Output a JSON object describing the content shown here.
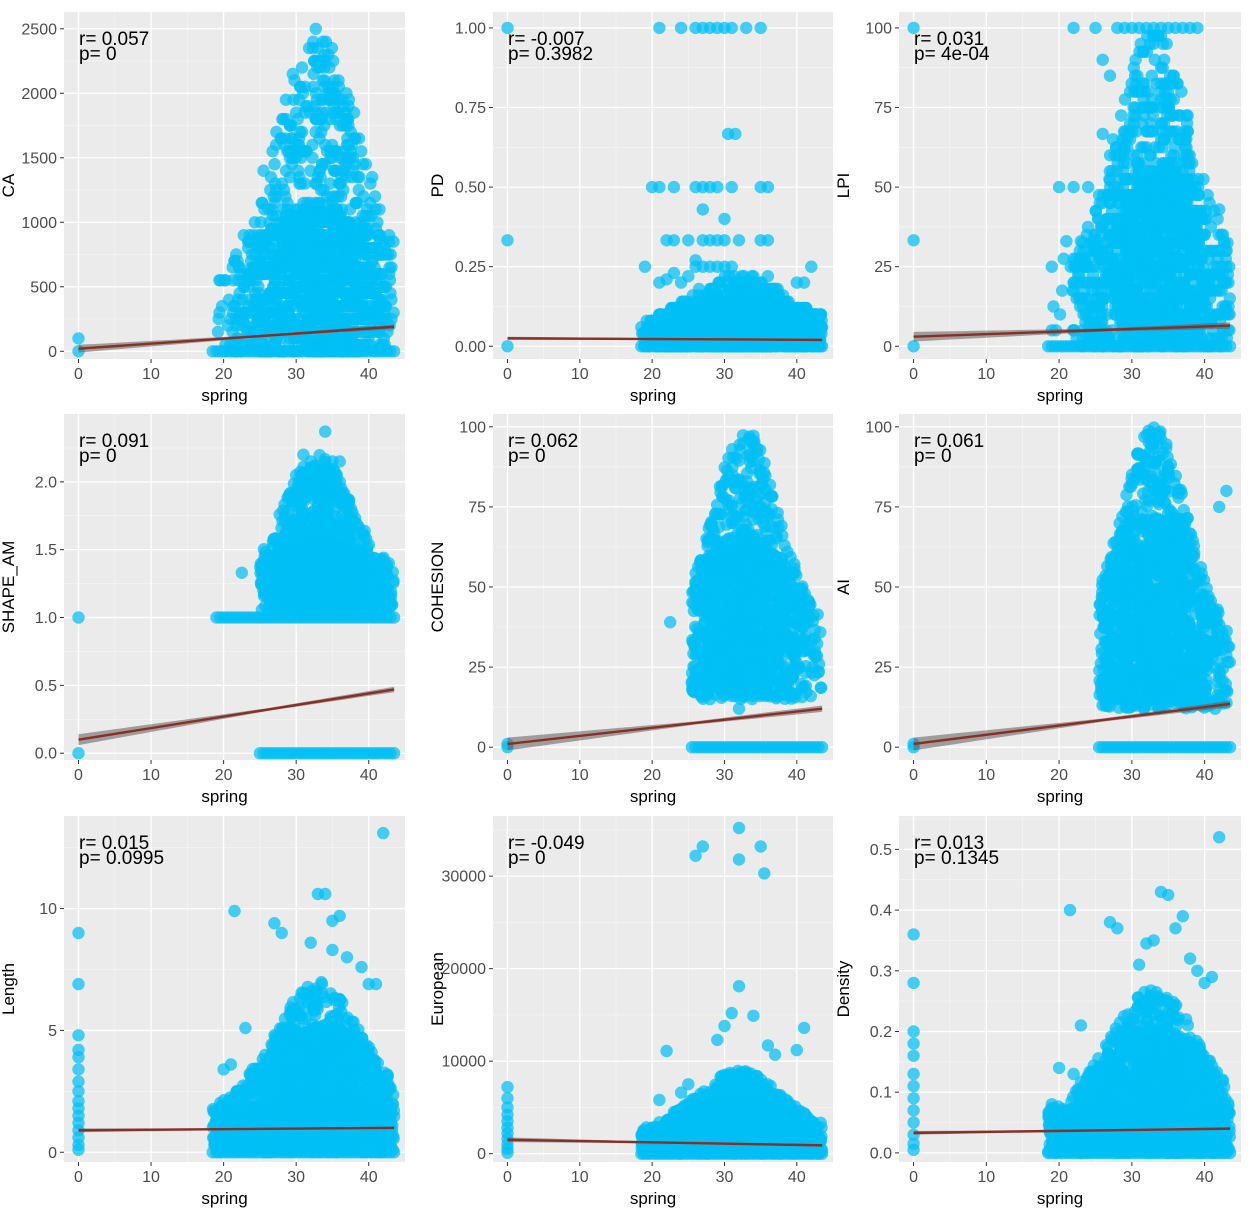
{
  "figure": {
    "layout": "3x3 grid of scatter plots with linear fits"
  },
  "colors": {
    "panel_bg": "#EBEBEB",
    "grid_major": "#FFFFFF",
    "grid_minor": "#F5F5F5",
    "points": "#00BFF5",
    "fit_line": "#8B2E24",
    "ci_band": "#5C5C5C",
    "tick_text": "#4D4D4D",
    "text": "#000000"
  },
  "chart_data": [
    {
      "id": "CA",
      "type": "scatter",
      "xlabel": "spring",
      "ylabel": "CA",
      "r_label": "r= 0.057",
      "p_label": "p= 0",
      "xlim": [
        -2,
        45
      ],
      "ylim": [
        -60,
        2630
      ],
      "xticks": [
        0,
        10,
        20,
        30,
        40
      ],
      "yticks": [
        0,
        500,
        1000,
        1500,
        2000,
        2500
      ],
      "ytick_labels": [
        "0",
        "500",
        "1000",
        "1500",
        "2000",
        "2500"
      ],
      "fit": {
        "x": [
          0,
          43.5
        ],
        "y": [
          20,
          190
        ]
      },
      "ci_halfwidth": [
        30,
        8,
        18
      ],
      "distribution": {
        "kind": "discrete",
        "step": 50,
        "xrange": [
          18.5,
          43.5
        ],
        "ymax": 2500,
        "body": 650,
        "peak_x": 33,
        "spread": 5.5
      },
      "extra_points": [
        [
          0,
          0
        ],
        [
          0,
          100
        ],
        [
          25.5,
          1400
        ],
        [
          37.5,
          1500
        ]
      ]
    },
    {
      "id": "PD",
      "type": "scatter",
      "xlabel": "spring",
      "ylabel": "PD",
      "r_label": "r= -0.007",
      "p_label": "p= 0.3982",
      "xlim": [
        -2,
        45
      ],
      "ylim": [
        -0.04,
        1.05
      ],
      "xticks": [
        0,
        10,
        20,
        30,
        40
      ],
      "yticks": [
        0,
        0.25,
        0.5,
        0.75,
        1.0
      ],
      "ytick_labels": [
        "0.00",
        "0.25",
        "0.50",
        "0.75",
        "1.00"
      ],
      "fit": {
        "x": [
          0,
          43.5
        ],
        "y": [
          0.025,
          0.02
        ]
      },
      "ci_halfwidth": [
        0.005,
        0.002,
        0.004
      ],
      "distribution": {
        "kind": "discrete",
        "step": 0.02,
        "xrange": [
          18.5,
          43.5
        ],
        "ymax": 0.22,
        "body": 0.1,
        "peak_x": 32,
        "spread": 7
      },
      "extra_points": [
        [
          0,
          0
        ],
        [
          0,
          1.0
        ],
        [
          0,
          0.333
        ],
        [
          21,
          1.0
        ],
        [
          24,
          1.0
        ],
        [
          26,
          1.0
        ],
        [
          27,
          1.0
        ],
        [
          28,
          1.0
        ],
        [
          29,
          1.0
        ],
        [
          30,
          1.0
        ],
        [
          31,
          1.0
        ],
        [
          33,
          1.0
        ],
        [
          35,
          1.0
        ],
        [
          20,
          0.5
        ],
        [
          21,
          0.5
        ],
        [
          23,
          0.5
        ],
        [
          26,
          0.5
        ],
        [
          27,
          0.5
        ],
        [
          28,
          0.5
        ],
        [
          29,
          0.5
        ],
        [
          31,
          0.5
        ],
        [
          35,
          0.5
        ],
        [
          36,
          0.5
        ],
        [
          30.5,
          0.667
        ],
        [
          31.5,
          0.667
        ],
        [
          22,
          0.333
        ],
        [
          23,
          0.333
        ],
        [
          25,
          0.333
        ],
        [
          27,
          0.333
        ],
        [
          28,
          0.333
        ],
        [
          29,
          0.333
        ],
        [
          30,
          0.333
        ],
        [
          32,
          0.333
        ],
        [
          35,
          0.333
        ],
        [
          36,
          0.333
        ],
        [
          26,
          0.25
        ],
        [
          27,
          0.25
        ],
        [
          28,
          0.25
        ],
        [
          29,
          0.25
        ],
        [
          30,
          0.25
        ],
        [
          31,
          0.25
        ],
        [
          19,
          0.25
        ],
        [
          42,
          0.25
        ],
        [
          30,
          0.4
        ],
        [
          27,
          0.43
        ],
        [
          21,
          0.2
        ],
        [
          22,
          0.21
        ],
        [
          23,
          0.23
        ],
        [
          24,
          0.2
        ],
        [
          25,
          0.22
        ],
        [
          26,
          0.27
        ],
        [
          36,
          0.22
        ],
        [
          40,
          0.2
        ],
        [
          41,
          0.2
        ]
      ]
    },
    {
      "id": "LPI",
      "type": "scatter",
      "xlabel": "spring",
      "ylabel": "LPI",
      "r_label": "r= 0.031",
      "p_label": "p= 4e-04",
      "xlim": [
        -2,
        45
      ],
      "ylim": [
        -4,
        105
      ],
      "xticks": [
        0,
        10,
        20,
        30,
        40
      ],
      "yticks": [
        0,
        25,
        50,
        75,
        100
      ],
      "ytick_labels": [
        "0",
        "25",
        "50",
        "75",
        "100"
      ],
      "fit": {
        "x": [
          0,
          43.5
        ],
        "y": [
          3,
          6.5
        ]
      },
      "ci_halfwidth": [
        1.5,
        0.5,
        1.0
      ],
      "distribution": {
        "kind": "discrete",
        "step": 2.5,
        "xrange": [
          18.5,
          43.5
        ],
        "ymax": 100,
        "body": 35,
        "peak_x": 33,
        "spread": 5
      },
      "extra_points": [
        [
          0,
          0
        ],
        [
          0,
          33.3
        ],
        [
          0,
          100
        ],
        [
          20,
          50
        ],
        [
          22,
          50
        ],
        [
          24,
          50
        ],
        [
          26,
          66.7
        ],
        [
          27,
          85
        ],
        [
          21,
          33
        ],
        [
          23,
          33
        ],
        [
          25,
          33
        ],
        [
          19,
          25
        ],
        [
          22,
          20
        ],
        [
          24,
          25
        ],
        [
          26,
          30
        ],
        [
          27,
          45
        ],
        [
          27,
          52
        ],
        [
          28,
          100
        ],
        [
          29,
          100
        ],
        [
          30,
          100
        ],
        [
          31,
          100
        ],
        [
          32,
          100
        ],
        [
          33,
          100
        ],
        [
          34,
          100
        ],
        [
          35,
          100
        ],
        [
          36,
          100
        ],
        [
          37,
          100
        ],
        [
          38,
          100
        ],
        [
          39,
          100
        ],
        [
          22,
          100
        ],
        [
          25,
          100
        ],
        [
          26,
          90
        ],
        [
          42,
          43
        ],
        [
          43,
          20
        ],
        [
          43,
          25
        ]
      ]
    },
    {
      "id": "SHAPE_AM",
      "type": "scatter",
      "xlabel": "spring",
      "ylabel": "SHAPE_AM",
      "r_label": "r= 0.091",
      "p_label": "p= 0",
      "xlim": [
        -2,
        45
      ],
      "ylim": [
        -0.05,
        2.5
      ],
      "xticks": [
        0,
        10,
        20,
        30,
        40
      ],
      "yticks": [
        0,
        0.5,
        1.0,
        1.5,
        2.0
      ],
      "ytick_labels": [
        "0.0",
        "0.5",
        "1.0",
        "1.5",
        "2.0"
      ],
      "fit": {
        "x": [
          0,
          43.5
        ],
        "y": [
          0.1,
          0.47
        ]
      },
      "ci_halfwidth": [
        0.04,
        0.01,
        0.02
      ],
      "distribution": {
        "kind": "cloud",
        "xrange": [
          25,
          43.5
        ],
        "ymin": 1.05,
        "ymax": 2.2,
        "body": 1.35,
        "peak_x": 33,
        "spread": 4.5
      },
      "extra_points": [
        [
          0,
          0
        ],
        [
          0,
          1.0
        ],
        [
          22.5,
          1.33
        ],
        [
          34,
          2.37
        ],
        [
          31,
          2.2
        ],
        [
          32,
          2.15
        ],
        [
          35,
          2.15
        ],
        [
          36,
          2.15
        ],
        [
          30,
          2.05
        ],
        [
          33,
          2.05
        ]
      ]
    },
    {
      "id": "COHESION",
      "type": "scatter",
      "xlabel": "spring",
      "ylabel": "COHESION",
      "r_label": "r= 0.062",
      "p_label": "p= 0",
      "xlim": [
        -2,
        45
      ],
      "ylim": [
        -4,
        104
      ],
      "xticks": [
        0,
        10,
        20,
        30,
        40
      ],
      "yticks": [
        0,
        25,
        50,
        75,
        100
      ],
      "ytick_labels": [
        "0",
        "25",
        "50",
        "75",
        "100"
      ],
      "fit": {
        "x": [
          0,
          43.5
        ],
        "y": [
          1,
          12
        ]
      },
      "ci_halfwidth": [
        2.0,
        0.5,
        1.0
      ],
      "distribution": {
        "kind": "cloud",
        "xrange": [
          25.5,
          43.5
        ],
        "ymin": 15,
        "ymax": 100,
        "body": 50,
        "peak_x": 33,
        "spread": 4.5
      },
      "extra_points": [
        [
          0,
          0
        ],
        [
          0,
          1
        ],
        [
          22.5,
          39
        ],
        [
          25.5,
          20
        ],
        [
          32,
          12
        ],
        [
          28,
          15
        ]
      ]
    },
    {
      "id": "AI",
      "type": "scatter",
      "xlabel": "spring",
      "ylabel": "AI",
      "r_label": "r= 0.061",
      "p_label": "p= 0",
      "xlim": [
        -2,
        45
      ],
      "ylim": [
        -4,
        104
      ],
      "xticks": [
        0,
        10,
        20,
        30,
        40
      ],
      "yticks": [
        0,
        25,
        50,
        75,
        100
      ],
      "ytick_labels": [
        "0",
        "25",
        "50",
        "75",
        "100"
      ],
      "fit": {
        "x": [
          0,
          43.5
        ],
        "y": [
          1,
          13.5
        ]
      },
      "ci_halfwidth": [
        2.0,
        0.5,
        1.0
      ],
      "distribution": {
        "kind": "cloud",
        "xrange": [
          25.5,
          43.5
        ],
        "ymin": 12,
        "ymax": 100,
        "body": 55,
        "peak_x": 33,
        "spread": 4.5
      },
      "extra_points": [
        [
          0,
          0
        ],
        [
          0,
          1
        ],
        [
          30,
          14
        ],
        [
          38,
          14
        ],
        [
          42,
          75
        ],
        [
          43,
          80
        ]
      ]
    },
    {
      "id": "Length",
      "type": "scatter",
      "xlabel": "spring",
      "ylabel": "Length",
      "r_label": "r= 0.015",
      "p_label": "p= 0.0995",
      "xlim": [
        -2,
        45
      ],
      "ylim": [
        -0.4,
        13.8
      ],
      "xticks": [
        0,
        10,
        20,
        30,
        40
      ],
      "yticks": [
        0,
        5,
        10
      ],
      "ytick_labels": [
        "0",
        "5",
        "10"
      ],
      "fit": {
        "x": [
          0,
          43.5
        ],
        "y": [
          0.9,
          1.0
        ]
      },
      "ci_halfwidth": [
        0.08,
        0.02,
        0.04
      ],
      "distribution": {
        "kind": "cloud",
        "xrange": [
          18.5,
          43.5
        ],
        "ymin": 0,
        "ymax": 7,
        "body": 3.8,
        "peak_x": 33,
        "spread": 6
      },
      "extra_points": [
        [
          0,
          9.0
        ],
        [
          0,
          6.9
        ],
        [
          0,
          4.8
        ],
        [
          0,
          4.2
        ],
        [
          0,
          3.9
        ],
        [
          0,
          3.4
        ],
        [
          0,
          2.9
        ],
        [
          0,
          2.5
        ],
        [
          0,
          2.1
        ],
        [
          0,
          1.8
        ],
        [
          0,
          1.5
        ],
        [
          0,
          1.2
        ],
        [
          0,
          0.9
        ],
        [
          0,
          0.6
        ],
        [
          0,
          0.3
        ],
        [
          0,
          0.1
        ],
        [
          21.5,
          9.9
        ],
        [
          27,
          9.4
        ],
        [
          28,
          9.0
        ],
        [
          33,
          10.6
        ],
        [
          34,
          10.6
        ],
        [
          35,
          9.5
        ],
        [
          36,
          9.7
        ],
        [
          42,
          13.1
        ],
        [
          32,
          8.6
        ],
        [
          35,
          8.3
        ],
        [
          37,
          8.0
        ],
        [
          39,
          7.6
        ],
        [
          40,
          6.9
        ],
        [
          41,
          6.9
        ],
        [
          23,
          5.1
        ],
        [
          20,
          3.4
        ],
        [
          21,
          3.6
        ],
        [
          22,
          2.5
        ],
        [
          24,
          3.2
        ],
        [
          19,
          1.3
        ]
      ]
    },
    {
      "id": "European",
      "type": "scatter",
      "xlabel": "spring",
      "ylabel": "European",
      "r_label": "r= -0.049",
      "p_label": "p= 0",
      "xlim": [
        -2,
        45
      ],
      "ylim": [
        -900,
        36500
      ],
      "xticks": [
        0,
        10,
        20,
        30,
        40
      ],
      "yticks": [
        0,
        10000,
        20000,
        30000
      ],
      "ytick_labels": [
        "0",
        "10000",
        "20000",
        "30000"
      ],
      "fit": {
        "x": [
          0,
          43.5
        ],
        "y": [
          1500,
          900
        ]
      },
      "ci_halfwidth": [
        250,
        60,
        150
      ],
      "distribution": {
        "kind": "cloud",
        "xrange": [
          18.5,
          43.5
        ],
        "ymin": 0,
        "ymax": 9000,
        "body": 4200,
        "peak_x": 32,
        "spread": 6
      },
      "extra_points": [
        [
          0,
          7200
        ],
        [
          0,
          6000
        ],
        [
          0,
          5000
        ],
        [
          0,
          4200
        ],
        [
          0,
          3500
        ],
        [
          0,
          2800
        ],
        [
          0,
          2200
        ],
        [
          0,
          1600
        ],
        [
          0,
          1000
        ],
        [
          0,
          500
        ],
        [
          0,
          100
        ],
        [
          26,
          32200
        ],
        [
          27,
          33200
        ],
        [
          32,
          35200
        ],
        [
          35,
          33200
        ],
        [
          32,
          31800
        ],
        [
          35.5,
          30300
        ],
        [
          32,
          18100
        ],
        [
          31,
          15200
        ],
        [
          34,
          14900
        ],
        [
          30,
          13800
        ],
        [
          41,
          13600
        ],
        [
          29,
          12300
        ],
        [
          36,
          11700
        ],
        [
          22,
          11100
        ],
        [
          40,
          11200
        ],
        [
          37,
          10700
        ],
        [
          19,
          1100
        ],
        [
          21,
          5800
        ],
        [
          23,
          4500
        ],
        [
          24,
          6600
        ],
        [
          25,
          7500
        ]
      ]
    },
    {
      "id": "Density",
      "type": "scatter",
      "xlabel": "spring",
      "ylabel": "Density",
      "r_label": "r= 0.013",
      "p_label": "p= 0.1345",
      "xlim": [
        -2,
        45
      ],
      "ylim": [
        -0.015,
        0.555
      ],
      "xticks": [
        0,
        10,
        20,
        30,
        40
      ],
      "yticks": [
        0,
        0.1,
        0.2,
        0.3,
        0.4,
        0.5
      ],
      "ytick_labels": [
        "0.0",
        "0.1",
        "0.2",
        "0.3",
        "0.4",
        "0.5"
      ],
      "fit": {
        "x": [
          0,
          43.5
        ],
        "y": [
          0.033,
          0.04
        ]
      },
      "ci_halfwidth": [
        0.003,
        0.001,
        0.002
      ],
      "distribution": {
        "kind": "cloud",
        "xrange": [
          18.5,
          43.5
        ],
        "ymin": 0,
        "ymax": 0.27,
        "body": 0.15,
        "peak_x": 33,
        "spread": 6
      },
      "extra_points": [
        [
          0,
          0.36
        ],
        [
          0,
          0.28
        ],
        [
          0,
          0.2
        ],
        [
          0,
          0.18
        ],
        [
          0,
          0.16
        ],
        [
          0,
          0.13
        ],
        [
          0,
          0.11
        ],
        [
          0,
          0.09
        ],
        [
          0,
          0.07
        ],
        [
          0,
          0.05
        ],
        [
          0,
          0.03
        ],
        [
          0,
          0.015
        ],
        [
          0,
          0.005
        ],
        [
          21.5,
          0.4
        ],
        [
          34,
          0.43
        ],
        [
          35,
          0.425
        ],
        [
          42,
          0.52
        ],
        [
          27,
          0.38
        ],
        [
          28,
          0.37
        ],
        [
          33,
          0.35
        ],
        [
          37,
          0.39
        ],
        [
          36,
          0.37
        ],
        [
          31,
          0.31
        ],
        [
          32,
          0.345
        ],
        [
          38,
          0.32
        ],
        [
          39,
          0.3
        ],
        [
          40,
          0.28
        ],
        [
          41,
          0.29
        ],
        [
          23,
          0.21
        ],
        [
          20,
          0.14
        ],
        [
          19,
          0.08
        ],
        [
          22,
          0.13
        ]
      ]
    }
  ]
}
